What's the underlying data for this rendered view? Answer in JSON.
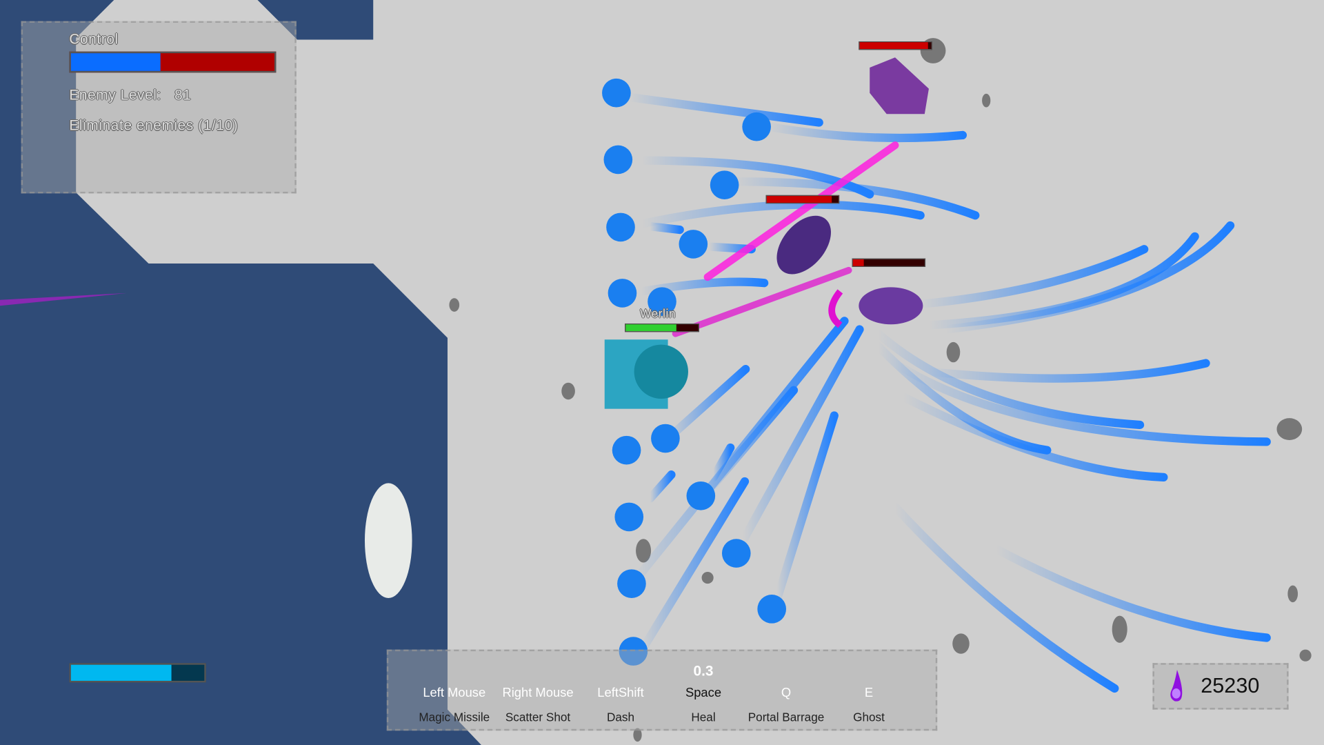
{
  "objective_panel": {
    "control_label": "Control",
    "control_fraction": 0.44,
    "control_colors": {
      "player": "#0a6dff",
      "enemy": "#b00000"
    },
    "enemy_level_label": "Enemy Level:",
    "enemy_level": "81",
    "objective_text": "Eliminate enemies (1/10)"
  },
  "player": {
    "name": "Werlin",
    "health_fraction": 0.7,
    "mana_fraction": 0.75
  },
  "enemies": [
    {
      "health_fraction": 0.95
    },
    {
      "health_fraction": 0.9
    },
    {
      "health_fraction": 0.15
    }
  ],
  "abilities": {
    "cooldown": "0.3",
    "items": [
      {
        "key": "Left Mouse",
        "name": "Magic Missile"
      },
      {
        "key": "Right Mouse",
        "name": "Scatter Shot"
      },
      {
        "key": "LeftShift",
        "name": "Dash"
      },
      {
        "key": "Space",
        "name": "Heal"
      },
      {
        "key": "Q",
        "name": "Portal Barrage"
      },
      {
        "key": "E",
        "name": "Ghost"
      }
    ]
  },
  "currency": {
    "icon": "purple-soul-flame-icon",
    "value": "25230"
  }
}
